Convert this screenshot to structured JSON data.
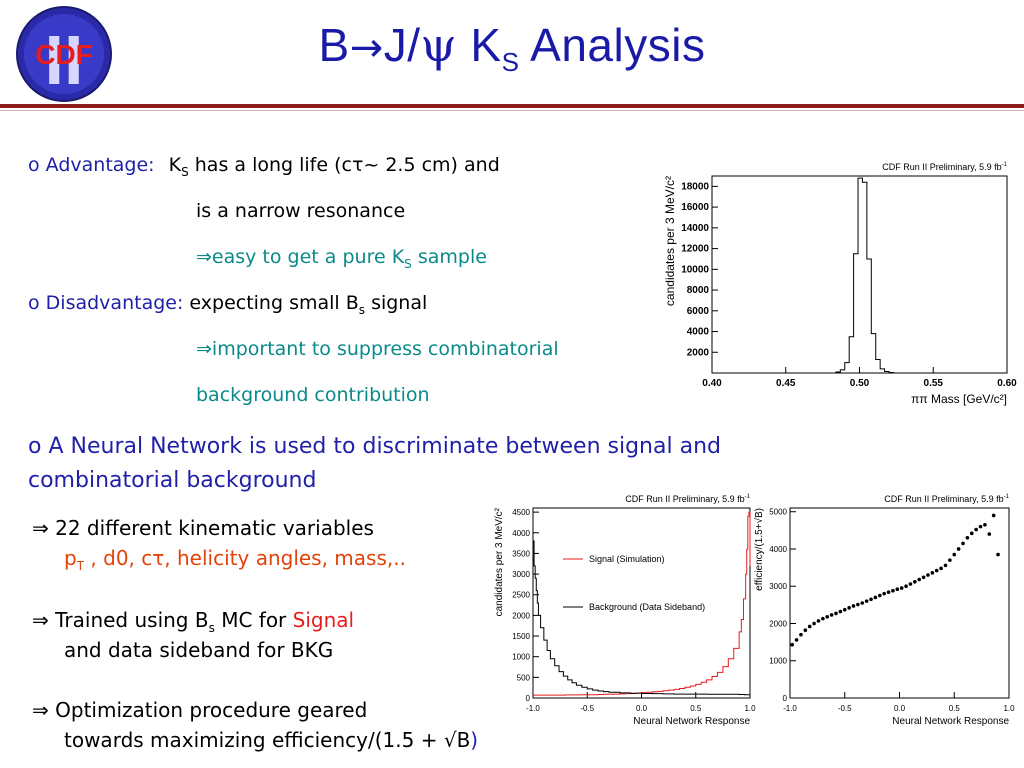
{
  "logo": {
    "text": "CDF",
    "numeral": "II"
  },
  "title": {
    "pre": "B",
    "arrow": "→",
    "mid": "J/",
    "psi": "ψ",
    "k": " K",
    "k_sub": "S",
    "post": " Analysis"
  },
  "bullets": {
    "advantage": {
      "marker": "o",
      "label": "Advantage:",
      "text1_pre": "K",
      "text1_sub": "S",
      "text1_post": " has a long life (cτ~ 2.5 cm)  and",
      "text2": "is a narrow resonance",
      "implication_arrow": "⇒",
      "implication_pre": "easy to get a pure K",
      "implication_sub": "S",
      "implication_post": " sample"
    },
    "disadvantage": {
      "marker": "o",
      "label": "Disadvantage:",
      "text_pre": "expecting small B",
      "text_sub": "s",
      "text_post": " signal",
      "implication_arrow": "⇒",
      "implication1": "important to suppress combinatorial",
      "implication2": "background contribution"
    },
    "neural_network": {
      "marker": "o",
      "line1": "A Neural Network is used to discriminate between signal and",
      "line2": "combinatorial background"
    },
    "nn_points": [
      {
        "arrow": "⇒",
        "line1": "22 different kinematic variables",
        "line2_pre": "p",
        "line2_sub": "T",
        "line2_post": " , d0, cτ, helicity angles, mass,.."
      },
      {
        "arrow": "⇒",
        "line1_pre": "Trained using B",
        "line1_sub": "s",
        "line1_mid": " MC for ",
        "line1_signal": "Signal",
        "line2": "and data sideband for BKG"
      },
      {
        "arrow": "⇒",
        "line1": "Optimization procedure geared",
        "line2_pre": "towards maximizing  efficiency/(1.5 + ",
        "line2_sqrt": "√B",
        "line2_post": ")"
      }
    ]
  },
  "colors": {
    "title": "#1a1aa8",
    "label": "#1f1fa8",
    "teal": "#0a8a8a",
    "signal": "#e81c1c",
    "orange": "#e3420b",
    "rule": "#8c1b1b"
  },
  "chart_data": [
    {
      "type": "line",
      "annotation": "CDF Run II Preliminary, 5.9 fb",
      "annotation_sup": "-1",
      "xlabel": "ππ Mass [GeV/c²]",
      "ylabel": "candidates per 3 MeV/c²",
      "xlim": [
        0.4,
        0.6
      ],
      "ylim": [
        0,
        19000
      ],
      "x_ticks": [
        "0.40",
        "0.45",
        "0.50",
        "0.55",
        "0.60"
      ],
      "y_ticks": [
        "2000",
        "4000",
        "6000",
        "8000",
        "10000",
        "12000",
        "14000",
        "16000",
        "18000"
      ],
      "series": [
        {
          "x": [
            0.4,
            0.403,
            0.406,
            0.409,
            0.412,
            0.415,
            0.418,
            0.421,
            0.424,
            0.427,
            0.43,
            0.433,
            0.436,
            0.439,
            0.442,
            0.445,
            0.448,
            0.451,
            0.454,
            0.457,
            0.46,
            0.463,
            0.466,
            0.469,
            0.472,
            0.475,
            0.478,
            0.481,
            0.484,
            0.487,
            0.49,
            0.493,
            0.496,
            0.499,
            0.502,
            0.505,
            0.508,
            0.511,
            0.514,
            0.517,
            0.52,
            0.523,
            0.526,
            0.529,
            0.532,
            0.535,
            0.538,
            0.541,
            0.544,
            0.547,
            0.55,
            0.553,
            0.556,
            0.559,
            0.562,
            0.565,
            0.568,
            0.571,
            0.574,
            0.577,
            0.58,
            0.583,
            0.586,
            0.589,
            0.592,
            0.595,
            0.598
          ],
          "y": [
            0,
            0,
            0,
            0,
            0,
            0,
            0,
            0,
            0,
            0,
            0,
            0,
            0,
            0,
            0,
            0,
            0,
            0,
            0,
            0,
            0,
            0,
            0,
            0,
            0,
            0,
            0,
            0,
            100,
            300,
            1000,
            3500,
            11500,
            18800,
            18400,
            11000,
            3800,
            1300,
            400,
            150,
            50,
            0,
            0,
            0,
            0,
            0,
            0,
            0,
            0,
            0,
            0,
            0,
            0,
            0,
            0,
            0,
            0,
            0,
            0,
            0,
            0,
            0,
            0,
            0,
            0,
            0,
            0
          ]
        }
      ]
    },
    {
      "type": "line",
      "annotation": "CDF Run II Preliminary, 5.9 fb",
      "annotation_sup": "-1",
      "xlabel": "Neural Network Response",
      "ylabel": "candidates per 3 MeV/c²",
      "xlim": [
        -1.0,
        1.0
      ],
      "ylim": [
        0,
        4600
      ],
      "x_ticks": [
        "-1.0",
        "-0.5",
        "0.0",
        "0.5",
        "1.0"
      ],
      "y_ticks": [
        "0",
        "500",
        "1000",
        "1500",
        "2000",
        "2500",
        "3000",
        "3500",
        "4000",
        "4500"
      ],
      "legend": "top-right",
      "series": [
        {
          "name": "Signal (Simulation)",
          "color": "#e81c1c",
          "x": [
            -1.0,
            -0.95,
            -0.9,
            -0.85,
            -0.8,
            -0.75,
            -0.7,
            -0.65,
            -0.6,
            -0.55,
            -0.5,
            -0.45,
            -0.4,
            -0.35,
            -0.3,
            -0.25,
            -0.2,
            -0.15,
            -0.1,
            -0.05,
            0.0,
            0.05,
            0.1,
            0.15,
            0.2,
            0.25,
            0.3,
            0.35,
            0.4,
            0.45,
            0.5,
            0.55,
            0.6,
            0.65,
            0.7,
            0.75,
            0.8,
            0.85,
            0.9,
            0.92,
            0.94,
            0.96,
            0.97,
            0.98,
            0.99,
            1.0
          ],
          "y": [
            70,
            70,
            70,
            70,
            70,
            70,
            75,
            75,
            75,
            80,
            80,
            80,
            85,
            90,
            90,
            95,
            100,
            105,
            110,
            120,
            130,
            140,
            150,
            160,
            175,
            190,
            210,
            230,
            260,
            290,
            330,
            380,
            440,
            520,
            620,
            760,
            950,
            1200,
            1600,
            1900,
            2400,
            3000,
            3600,
            4400,
            4500,
            3200
          ]
        },
        {
          "name": "Background (Data Sideband)",
          "color": "#000000",
          "x": [
            -1.0,
            -0.99,
            -0.98,
            -0.97,
            -0.96,
            -0.95,
            -0.93,
            -0.9,
            -0.87,
            -0.84,
            -0.8,
            -0.76,
            -0.72,
            -0.68,
            -0.64,
            -0.6,
            -0.55,
            -0.5,
            -0.45,
            -0.4,
            -0.35,
            -0.3,
            -0.2,
            -0.1,
            0.0,
            0.1,
            0.2,
            0.3,
            0.4,
            0.5,
            0.6,
            0.7,
            0.8,
            0.9,
            0.95,
            1.0
          ],
          "y": [
            3800,
            3200,
            2900,
            2600,
            2300,
            2000,
            1700,
            1400,
            1150,
            950,
            780,
            640,
            530,
            440,
            370,
            310,
            260,
            220,
            190,
            170,
            155,
            140,
            125,
            115,
            110,
            105,
            100,
            95,
            95,
            95,
            90,
            90,
            90,
            85,
            80,
            60
          ]
        }
      ]
    },
    {
      "type": "scatter",
      "annotation": "CDF Run II Preliminary, 5.9 fb",
      "annotation_sup": "-1",
      "xlabel": "Neural Network Response",
      "ylabel": "efficiency/(1.5+√B)",
      "xlim": [
        -1.0,
        1.0
      ],
      "ylim": [
        0,
        5100
      ],
      "x_ticks": [
        "-1.0",
        "-0.5",
        "0.0",
        "0.5",
        "1.0"
      ],
      "y_ticks": [
        "0",
        "1000",
        "2000",
        "3000",
        "4000",
        "5000"
      ],
      "series": [
        {
          "x": [
            -0.98,
            -0.94,
            -0.9,
            -0.86,
            -0.82,
            -0.78,
            -0.74,
            -0.7,
            -0.66,
            -0.62,
            -0.58,
            -0.54,
            -0.5,
            -0.46,
            -0.42,
            -0.38,
            -0.34,
            -0.3,
            -0.26,
            -0.22,
            -0.18,
            -0.14,
            -0.1,
            -0.06,
            -0.02,
            0.02,
            0.06,
            0.1,
            0.14,
            0.18,
            0.22,
            0.26,
            0.3,
            0.34,
            0.38,
            0.42,
            0.46,
            0.5,
            0.54,
            0.58,
            0.62,
            0.66,
            0.7,
            0.74,
            0.78,
            0.82,
            0.86,
            0.9
          ],
          "y": [
            1430,
            1560,
            1700,
            1820,
            1920,
            2000,
            2070,
            2130,
            2180,
            2230,
            2270,
            2320,
            2370,
            2420,
            2470,
            2510,
            2550,
            2600,
            2650,
            2700,
            2750,
            2800,
            2840,
            2880,
            2920,
            2950,
            3000,
            3060,
            3120,
            3180,
            3240,
            3300,
            3360,
            3420,
            3480,
            3560,
            3700,
            3850,
            4000,
            4150,
            4300,
            4420,
            4520,
            4600,
            4650,
            4400,
            4900,
            3850
          ]
        }
      ]
    }
  ]
}
